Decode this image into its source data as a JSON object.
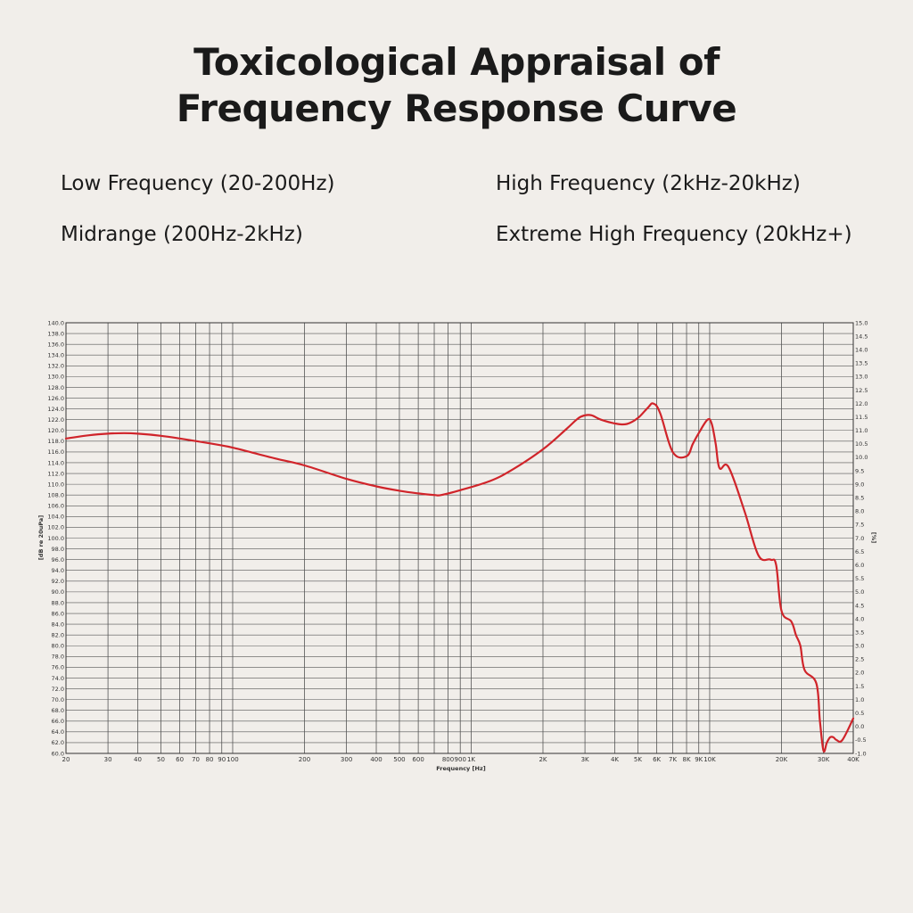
{
  "header": {
    "title_line1": "Toxicological Appraisal of",
    "title_line2": "Frequency Response Curve"
  },
  "bands": {
    "low": "Low Frequency (20-200Hz)",
    "mid": "Midrange (200Hz-2kHz)",
    "high": "High Frequency (2kHz-20kHz)",
    "extreme": "Extreme High Frequency (20kHz+)"
  },
  "colors": {
    "background": "#f1eeea",
    "curve": "#d0242a",
    "grid": "#555555"
  },
  "chart_data": {
    "type": "line",
    "title": "",
    "xlabel": "Frequency [Hz]",
    "ylabel": "[dB re 20uPa]",
    "y2label": "[%]",
    "x_scale": "log",
    "xlim": [
      20,
      40000
    ],
    "ylim": [
      60,
      140
    ],
    "y2lim": [
      -1.0,
      15.0
    ],
    "grid": true,
    "x_ticks": [
      {
        "value": 20,
        "label": "20"
      },
      {
        "value": 30,
        "label": "30"
      },
      {
        "value": 40,
        "label": "40"
      },
      {
        "value": 50,
        "label": "50"
      },
      {
        "value": 60,
        "label": "60"
      },
      {
        "value": 70,
        "label": "70"
      },
      {
        "value": 80,
        "label": "80"
      },
      {
        "value": 90,
        "label": "90"
      },
      {
        "value": 100,
        "label": "100"
      },
      {
        "value": 200,
        "label": "200"
      },
      {
        "value": 300,
        "label": "300"
      },
      {
        "value": 400,
        "label": "400"
      },
      {
        "value": 500,
        "label": "500"
      },
      {
        "value": 600,
        "label": "600"
      },
      {
        "value": 700,
        "label": ""
      },
      {
        "value": 800,
        "label": "800"
      },
      {
        "value": 900,
        "label": "900"
      },
      {
        "value": 1000,
        "label": "1K"
      },
      {
        "value": 2000,
        "label": "2K"
      },
      {
        "value": 3000,
        "label": "3K"
      },
      {
        "value": 4000,
        "label": "4K"
      },
      {
        "value": 5000,
        "label": "5K"
      },
      {
        "value": 6000,
        "label": "6K"
      },
      {
        "value": 7000,
        "label": "7K"
      },
      {
        "value": 8000,
        "label": "8K"
      },
      {
        "value": 9000,
        "label": "9K"
      },
      {
        "value": 10000,
        "label": "10K"
      },
      {
        "value": 20000,
        "label": "20K"
      },
      {
        "value": 30000,
        "label": "30K"
      },
      {
        "value": 40000,
        "label": "40K"
      }
    ],
    "y_ticks": [
      "60.0",
      "62.0",
      "64.0",
      "66.0",
      "68.0",
      "70.0",
      "72.0",
      "74.0",
      "76.0",
      "78.0",
      "80.0",
      "82.0",
      "84.0",
      "86.0",
      "88.0",
      "90.0",
      "92.0",
      "94.0",
      "96.0",
      "98.0",
      "100.0",
      "102.0",
      "104.0",
      "106.0",
      "108.0",
      "110.0",
      "112.0",
      "114.0",
      "116.0",
      "118.0",
      "120.0",
      "122.0",
      "124.0",
      "126.0",
      "128.0",
      "130.0",
      "132.0",
      "134.0",
      "136.0",
      "138.0",
      "140.0"
    ],
    "y2_ticks": [
      "-1.0",
      "-0.5",
      "0.0",
      "0.5",
      "1.0",
      "1.5",
      "2.0",
      "2.5",
      "3.0",
      "3.5",
      "4.0",
      "4.5",
      "5.0",
      "5.5",
      "6.0",
      "6.5",
      "7.0",
      "7.5",
      "8.0",
      "8.5",
      "9.0",
      "9.5",
      "10.0",
      "10.5",
      "11.0",
      "11.5",
      "12.0",
      "12.5",
      "13.0",
      "13.5",
      "14.0",
      "14.5",
      "15.0"
    ],
    "series": [
      {
        "x": [
          20,
          25,
          30,
          35,
          40,
          50,
          60,
          80,
          100,
          150,
          200,
          300,
          400,
          500,
          600,
          700,
          750,
          900,
          1200,
          1500,
          2000,
          2500,
          2800,
          3000,
          3200,
          3500,
          4000,
          4500,
          5000,
          5500,
          5800,
          6200,
          7000,
          8000,
          8500,
          9000,
          9800,
          10200,
          10600,
          11000,
          12000,
          14000,
          16000,
          18000,
          19000,
          20000,
          22000,
          23000,
          24000,
          25000,
          28000,
          29000,
          30000,
          31000,
          32000,
          33000,
          34000,
          36000,
          40000
        ],
        "y": [
          118.5,
          119.1,
          119.4,
          119.5,
          119.4,
          119.0,
          118.5,
          117.6,
          116.8,
          114.8,
          113.5,
          111.0,
          109.6,
          108.8,
          108.3,
          108.0,
          108.0,
          108.9,
          110.6,
          112.8,
          116.5,
          120.2,
          122.2,
          122.8,
          122.8,
          122.0,
          121.3,
          121.2,
          122.3,
          124.2,
          125.0,
          123.2,
          116.0,
          115.2,
          117.5,
          119.5,
          122.0,
          121.2,
          117.5,
          113.0,
          113.2,
          105.0,
          96.8,
          96.0,
          95.0,
          86.5,
          84.5,
          82.0,
          80.0,
          75.5,
          73.0,
          66.0,
          60.5,
          62.0,
          63.0,
          63.0,
          62.5,
          62.5,
          66.5
        ]
      }
    ]
  }
}
